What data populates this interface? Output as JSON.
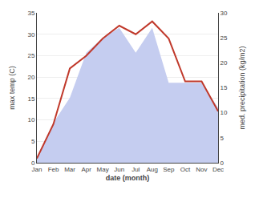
{
  "chart_data": {
    "type": "line",
    "xlabel": "date (month)",
    "ylabel": "max temp (C)",
    "y2label": "med. precipitation (kg/m2)",
    "categories": [
      "Jan",
      "Feb",
      "Mar",
      "Apr",
      "May",
      "Jun",
      "Jul",
      "Aug",
      "Sep",
      "Oct",
      "Nov",
      "Dec"
    ],
    "series": [
      {
        "type": "area",
        "color": "#c5cdf0",
        "axis": "y2",
        "values": [
          1,
          8,
          13,
          22,
          25,
          27,
          22,
          27,
          16,
          16,
          16,
          11
        ]
      },
      {
        "type": "line",
        "color": "#c0392b",
        "values": [
          1,
          9,
          22,
          25,
          29,
          32,
          30,
          33,
          29,
          19,
          19,
          12
        ]
      }
    ],
    "ylim": [
      0,
      35
    ],
    "yticks": [
      0,
      5,
      10,
      15,
      20,
      25,
      30,
      35
    ],
    "y2lim": [
      0,
      30
    ],
    "y2ticks": [
      0,
      5,
      10,
      15,
      20,
      25,
      30
    ],
    "grid": true
  }
}
